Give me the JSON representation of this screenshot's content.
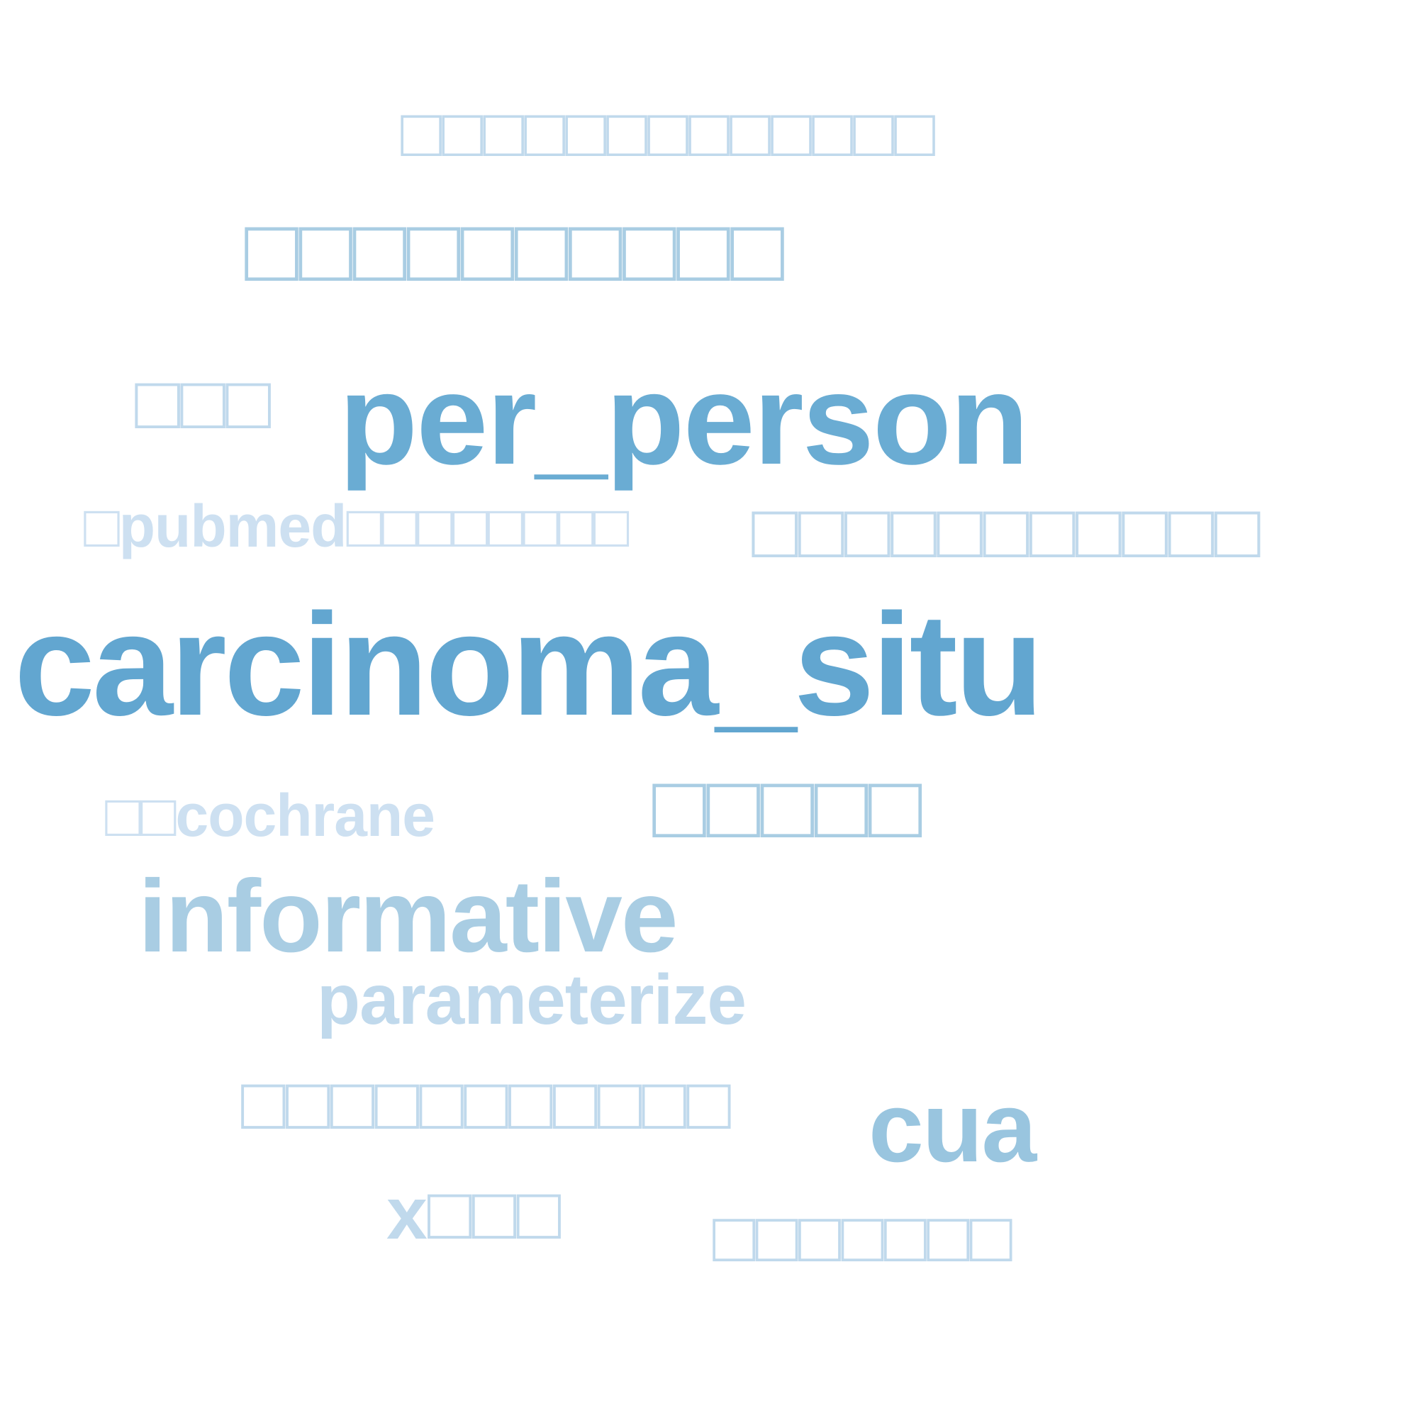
{
  "words": [
    {
      "text": "□□□□□□□□□□□□□",
      "color": "#c0d9ec"
    },
    {
      "text": "□□□□□□□□□□",
      "color": "#a9cde3"
    },
    {
      "text": "□□□",
      "color": "#c0d9ec"
    },
    {
      "text": "per_person",
      "color": "#6aacd3"
    },
    {
      "text": "□pubmed□□□□□□□□",
      "color": "#cde0f1"
    },
    {
      "text": "□□□□□□□□□□□",
      "color": "#c0d9ec"
    },
    {
      "text": "carcinoma_situ",
      "color": "#62a6d0"
    },
    {
      "text": "□□□□□",
      "color": "#a9cde3"
    },
    {
      "text": "□□cochrane",
      "color": "#cde0f1"
    },
    {
      "text": "informative",
      "color": "#a9cde3"
    },
    {
      "text": "parameterize",
      "color": "#c0d9ec"
    },
    {
      "text": "□□□□□□□□□□□",
      "color": "#c0d9ec"
    },
    {
      "text": "cua",
      "color": "#99c5df"
    },
    {
      "text": "x□□□",
      "color": "#c0d9ec"
    },
    {
      "text": "□□□□□□□",
      "color": "#c0d9ec"
    }
  ]
}
